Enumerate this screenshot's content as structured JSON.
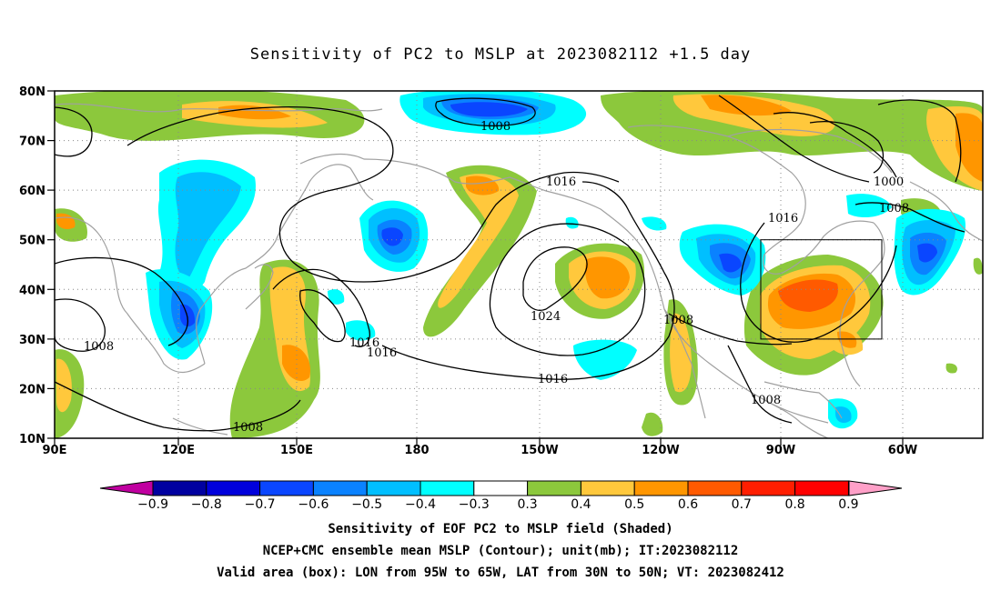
{
  "title": "Sensitivity of PC2 to MSLP at 2023082112 +1.5 day",
  "lat_labels": [
    "80N",
    "70N",
    "60N",
    "50N",
    "40N",
    "30N",
    "20N",
    "10N"
  ],
  "lon_labels": [
    "90E",
    "120E",
    "150E",
    "180",
    "150W",
    "120W",
    "90W",
    "60W"
  ],
  "contour_labels": [
    "1008",
    "1016",
    "1000",
    "1008",
    "1016",
    "1024",
    "1008",
    "1016",
    "1016",
    "1016",
    "1008",
    "1008",
    "1008"
  ],
  "colorbar": {
    "labels": [
      "-0.9",
      "-0.8",
      "-0.7",
      "-0.6",
      "-0.5",
      "-0.4",
      "-0.3",
      "0.3",
      "0.4",
      "0.5",
      "0.6",
      "0.7",
      "0.8",
      "0.9"
    ],
    "colors": [
      "#0000a0",
      "#0000dc",
      "#0a46ff",
      "#0a82ff",
      "#00bfff",
      "#00ffff",
      "#ffffff",
      "#8cc83c",
      "#ffc83c",
      "#ff9600",
      "#ff5a00",
      "#ff1e00",
      "#ff0000"
    ],
    "low_color": "#c000a0",
    "high_color": "#ffa0c8"
  },
  "captions": [
    "Sensitivity of EOF PC2 to MSLP field (Shaded)",
    "NCEP+CMC ensemble mean MSLP (Contour); unit(mb); IT:2023082112",
    "Valid area (box): LON from 95W to 65W, LAT from 30N to 50N; VT: 2023082412"
  ]
}
